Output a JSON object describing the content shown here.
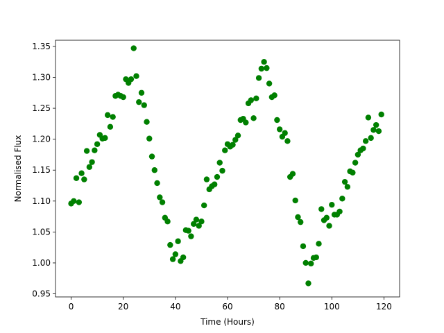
{
  "chart_data": {
    "type": "scatter",
    "title": "",
    "xlabel": "Time (Hours)",
    "ylabel": "Normalised Flux",
    "xlim": [
      -6,
      126
    ],
    "ylim": [
      0.945,
      1.36
    ],
    "xticks": [
      0,
      20,
      40,
      60,
      80,
      100,
      120
    ],
    "xtick_labels": [
      "0",
      "20",
      "40",
      "60",
      "80",
      "100",
      "120"
    ],
    "yticks": [
      0.95,
      1.0,
      1.05,
      1.1,
      1.15,
      1.2,
      1.25,
      1.3,
      1.35
    ],
    "ytick_labels": [
      "0.95",
      "1.00",
      "1.05",
      "1.10",
      "1.15",
      "1.20",
      "1.25",
      "1.30",
      "1.35"
    ],
    "grid": false,
    "marker_color": "#008000",
    "series": [
      {
        "x": [
          0,
          1,
          2,
          3,
          4,
          5,
          6,
          7,
          8,
          9,
          10,
          11,
          12,
          13,
          14,
          15,
          16,
          17,
          18,
          19,
          20,
          21,
          22,
          23,
          24,
          25,
          26,
          27,
          28,
          29,
          30,
          31,
          32,
          33,
          34,
          35,
          36,
          37,
          38,
          39,
          40,
          41,
          42,
          43,
          44,
          45,
          46,
          47,
          48,
          49,
          50,
          51,
          52,
          53,
          54,
          55,
          56,
          57,
          58,
          59,
          60,
          61,
          62,
          63,
          64,
          65,
          66,
          67,
          68,
          69,
          70,
          71,
          72,
          73,
          74,
          75,
          76,
          77,
          78,
          79,
          80,
          81,
          82,
          83,
          84,
          85,
          86,
          87,
          88,
          89,
          90,
          91,
          92,
          93,
          94,
          95,
          96,
          97,
          98,
          99,
          100,
          101,
          102,
          103,
          104,
          105,
          106,
          107,
          108,
          109,
          110,
          111,
          112,
          113,
          114,
          115,
          116,
          117,
          118,
          119
        ],
        "y": [
          1.096,
          1.1,
          1.137,
          1.098,
          1.145,
          1.135,
          1.181,
          1.155,
          1.163,
          1.182,
          1.192,
          1.207,
          1.201,
          1.202,
          1.239,
          1.22,
          1.236,
          1.27,
          1.272,
          1.27,
          1.268,
          1.297,
          1.291,
          1.297,
          1.347,
          1.302,
          1.26,
          1.275,
          1.255,
          1.228,
          1.201,
          1.172,
          1.15,
          1.129,
          1.106,
          1.098,
          1.073,
          1.067,
          1.029,
          1.006,
          1.014,
          1.035,
          1.003,
          1.009,
          1.053,
          1.052,
          1.043,
          1.063,
          1.07,
          1.06,
          1.067,
          1.093,
          1.135,
          1.119,
          1.124,
          1.127,
          1.139,
          1.162,
          1.149,
          1.182,
          1.192,
          1.188,
          1.191,
          1.199,
          1.206,
          1.231,
          1.233,
          1.227,
          1.258,
          1.263,
          1.234,
          1.266,
          1.299,
          1.314,
          1.325,
          1.315,
          1.29,
          1.268,
          1.271,
          1.231,
          1.216,
          1.204,
          1.21,
          1.197,
          1.139,
          1.144,
          1.101,
          1.074,
          1.066,
          1.027,
          1.0,
          0.967,
          0.999,
          1.008,
          1.009,
          1.031,
          1.087,
          1.069,
          1.073,
          1.06,
          1.094,
          1.078,
          1.078,
          1.083,
          1.104,
          1.131,
          1.123,
          1.148,
          1.146,
          1.162,
          1.175,
          1.182,
          1.185,
          1.197,
          1.235,
          1.202,
          1.215,
          1.223,
          1.213,
          1.24
        ]
      }
    ]
  }
}
